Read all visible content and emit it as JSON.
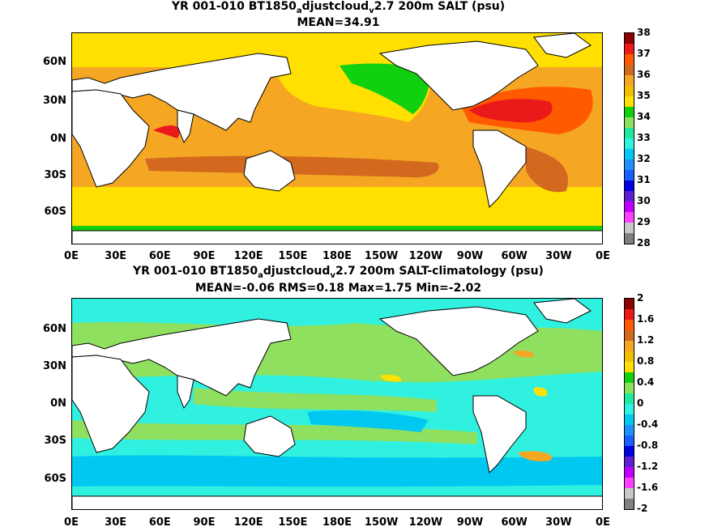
{
  "top": {
    "title_pre": "YR 001-010 BT1850",
    "title_sub1": "a",
    "title_mid": "djustcloud",
    "title_sub2": "v",
    "title_post": "2.7 200m SALT (psu)",
    "stats": "MEAN=34.91",
    "colorbar": {
      "labels": [
        "38",
        "37",
        "36",
        "35",
        "34",
        "33",
        "32",
        "31",
        "30",
        "29",
        "28"
      ],
      "colors": [
        "#8b0000",
        "#ea1a1a",
        "#ff5a00",
        "#d2691e",
        "#f5a623",
        "#f0c000",
        "#ffe000",
        "#10d010",
        "#90e060",
        "#20e8a0",
        "#30f0e0",
        "#00c8f0",
        "#1e90ff",
        "#1a60ff",
        "#0000e0",
        "#6020d0",
        "#c000ff",
        "#ff40ff",
        "#c8c8c8",
        "#808080"
      ]
    }
  },
  "bottom": {
    "title_pre": "YR 001-010 BT1850",
    "title_sub1": "a",
    "title_mid": "djustcloud",
    "title_sub2": "v",
    "title_post": "2.7 200m SALT-climatology (psu)",
    "stats": "MEAN=-0.06   RMS=0.18   Max=1.75   Min=-2.02",
    "colorbar": {
      "labels": [
        "2",
        "1.6",
        "1.2",
        "0.8",
        "0.4",
        "0",
        "-0.4",
        "-0.8",
        "-1.2",
        "-1.6",
        "-2"
      ],
      "colors": [
        "#8b0000",
        "#ea1a1a",
        "#ff5a00",
        "#d2691e",
        "#f5a623",
        "#f0c000",
        "#ffe000",
        "#10d010",
        "#90e060",
        "#20e8a0",
        "#30f0e0",
        "#00c8f0",
        "#1e90ff",
        "#1a60ff",
        "#0000e0",
        "#6020d0",
        "#c000ff",
        "#ff40ff",
        "#c8c8c8",
        "#808080"
      ]
    }
  },
  "axes": {
    "lat_labels": [
      "60N",
      "30N",
      "0N",
      "30S",
      "60S"
    ],
    "lon_labels": [
      "0E",
      "30E",
      "60E",
      "90E",
      "120E",
      "150E",
      "180E",
      "150W",
      "120W",
      "90W",
      "60W",
      "30W",
      "0E"
    ]
  }
}
